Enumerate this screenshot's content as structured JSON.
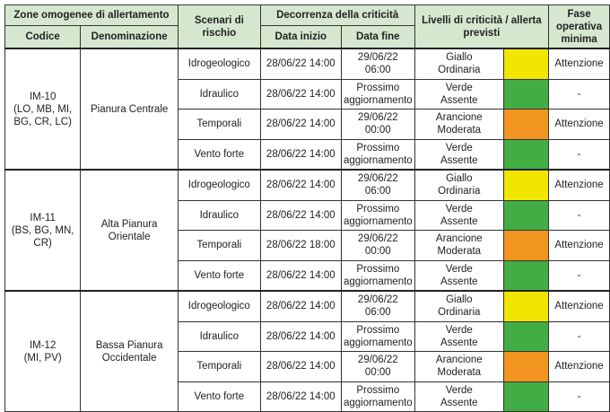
{
  "header": {
    "zone": "Zone omogenee di allertamento",
    "codice": "Codice",
    "denominazione": "Denominazione",
    "scenari": "Scenari di rischio",
    "decorrenza": "Decorrenza della criticità",
    "data_inizio": "Data inizio",
    "data_fine": "Data fine",
    "livelli": "Livelli di criticità / allerta previsti",
    "fase": "Fase operativa minima"
  },
  "colors": {
    "Giallo": "#f2e600",
    "Verde": "#43ad45",
    "Arancione": "#f29420"
  },
  "zones": [
    {
      "code": "IM-10",
      "provinces": "(LO, MB, MI, BG, CR, LC)",
      "name": "Pianura Centrale",
      "rows": [
        {
          "scenario": "Idrogeologico",
          "start": "28/06/22 14:00",
          "end": "29/06/22 06:00",
          "level": "Giallo",
          "alert": "Ordinaria",
          "phase": "Attenzione"
        },
        {
          "scenario": "Idraulico",
          "start": "28/06/22 14:00",
          "end": "Prossimo aggiornamento",
          "level": "Verde",
          "alert": "Assente",
          "phase": "-"
        },
        {
          "scenario": "Temporali",
          "start": "28/06/22 14:00",
          "end": "29/06/22 00:00",
          "level": "Arancione",
          "alert": "Moderata",
          "phase": "Attenzione"
        },
        {
          "scenario": "Vento forte",
          "start": "28/06/22 14:00",
          "end": "Prossimo aggiornamento",
          "level": "Verde",
          "alert": "Assente",
          "phase": "-"
        }
      ]
    },
    {
      "code": "IM-11",
      "provinces": "(BS, BG, MN, CR)",
      "name": "Alta Pianura Orientale",
      "rows": [
        {
          "scenario": "Idrogeologico",
          "start": "28/06/22 14:00",
          "end": "29/06/22 06:00",
          "level": "Giallo",
          "alert": "Ordinaria",
          "phase": "Attenzione"
        },
        {
          "scenario": "Idraulico",
          "start": "28/06/22 14:00",
          "end": "Prossimo aggiornamento",
          "level": "Verde",
          "alert": "Assente",
          "phase": "-"
        },
        {
          "scenario": "Temporali",
          "start": "28/06/22 18:00",
          "end": "29/06/22 00:00",
          "level": "Arancione",
          "alert": "Moderata",
          "phase": "Attenzione"
        },
        {
          "scenario": "Vento forte",
          "start": "28/06/22 14:00",
          "end": "Prossimo aggiornamento",
          "level": "Verde",
          "alert": "Assente",
          "phase": "-"
        }
      ]
    },
    {
      "code": "IM-12",
      "provinces": "(MI, PV)",
      "name": "Bassa Pianura Occidentale",
      "rows": [
        {
          "scenario": "Idrogeologico",
          "start": "28/06/22 14:00",
          "end": "29/06/22 06:00",
          "level": "Giallo",
          "alert": "Ordinaria",
          "phase": "Attenzione"
        },
        {
          "scenario": "Idraulico",
          "start": "28/06/22 14:00",
          "end": "Prossimo aggiornamento",
          "level": "Verde",
          "alert": "Assente",
          "phase": "-"
        },
        {
          "scenario": "Temporali",
          "start": "28/06/22 14:00",
          "end": "29/06/22 00:00",
          "level": "Arancione",
          "alert": "Moderata",
          "phase": "Attenzione"
        },
        {
          "scenario": "Vento forte",
          "start": "28/06/22 14:00",
          "end": "Prossimo aggiornamento",
          "level": "Verde",
          "alert": "Assente",
          "phase": "-"
        }
      ]
    }
  ]
}
